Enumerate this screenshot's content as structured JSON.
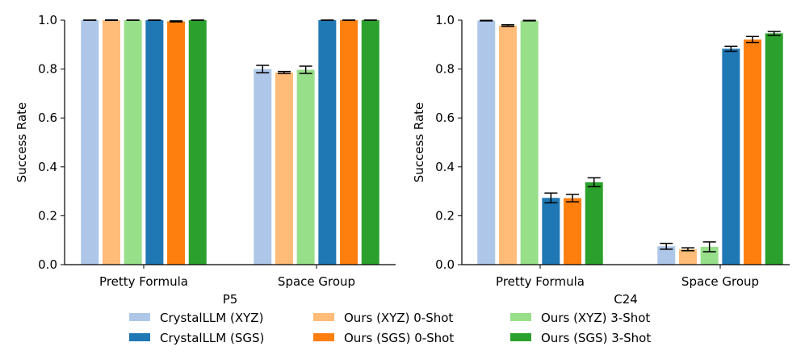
{
  "chart_data": [
    {
      "type": "bar",
      "title": "",
      "xlabel": "P5",
      "ylabel": "Success Rate",
      "ylim": [
        0,
        1.0
      ],
      "yticks": [
        "0.0",
        "0.2",
        "0.4",
        "0.6",
        "0.8",
        "1.0"
      ],
      "categories": [
        "Pretty Formula",
        "Space Group"
      ],
      "series": [
        {
          "name": "CrystalLLM (XYZ)",
          "values": [
            1.0,
            0.8
          ],
          "errors": [
            0.0,
            0.015
          ]
        },
        {
          "name": "Ours (XYZ) 0-Shot",
          "values": [
            1.0,
            0.786
          ],
          "errors": [
            0.001,
            0.004
          ]
        },
        {
          "name": "Ours (XYZ) 3-Shot",
          "values": [
            1.0,
            0.797
          ],
          "errors": [
            0.0,
            0.015
          ]
        },
        {
          "name": "CrystalLLM (SGS)",
          "values": [
            1.0,
            1.0
          ],
          "errors": [
            0.0,
            0.0
          ]
        },
        {
          "name": "Ours (SGS) 0-Shot",
          "values": [
            0.995,
            1.0
          ],
          "errors": [
            0.002,
            0.0
          ]
        },
        {
          "name": "Ours (SGS) 3-Shot",
          "values": [
            1.0,
            1.0
          ],
          "errors": [
            0.0,
            0.0
          ]
        }
      ]
    },
    {
      "type": "bar",
      "title": "",
      "xlabel": "C24",
      "ylabel": "Success Rate",
      "ylim": [
        0,
        1.0
      ],
      "yticks": [
        "0.0",
        "0.2",
        "0.4",
        "0.6",
        "0.8",
        "1.0"
      ],
      "categories": [
        "Pretty Formula",
        "Space Group"
      ],
      "series": [
        {
          "name": "CrystalLLM (XYZ)",
          "values": [
            0.998,
            0.075
          ],
          "errors": [
            0.001,
            0.012
          ]
        },
        {
          "name": "Ours (XYZ) 0-Shot",
          "values": [
            0.978,
            0.063
          ],
          "errors": [
            0.003,
            0.006
          ]
        },
        {
          "name": "Ours (XYZ) 3-Shot",
          "values": [
            0.998,
            0.073
          ],
          "errors": [
            0.001,
            0.02
          ]
        },
        {
          "name": "CrystalLLM (SGS)",
          "values": [
            0.273,
            0.883
          ],
          "errors": [
            0.02,
            0.01
          ]
        },
        {
          "name": "Ours (SGS) 0-Shot",
          "values": [
            0.272,
            0.921
          ],
          "errors": [
            0.015,
            0.012
          ]
        },
        {
          "name": "Ours (SGS) 3-Shot",
          "values": [
            0.337,
            0.946
          ],
          "errors": [
            0.018,
            0.008
          ]
        }
      ]
    }
  ],
  "legend": {
    "placement": "bottom-center",
    "columns": 3,
    "items": [
      {
        "label": "CrystalLLM (XYZ)",
        "color": "#aec7e8"
      },
      {
        "label": "CrystalLLM (SGS)",
        "color": "#1f77b4"
      },
      {
        "label": "Ours (XYZ) 0-Shot",
        "color": "#ffbb78"
      },
      {
        "label": "Ours (SGS) 0-Shot",
        "color": "#ff7f0e"
      },
      {
        "label": "Ours (XYZ) 3-Shot",
        "color": "#98df8a"
      },
      {
        "label": "Ours (SGS) 3-Shot",
        "color": "#2ca02c"
      }
    ]
  },
  "series_colors": [
    "#aec7e8",
    "#ffbb78",
    "#98df8a",
    "#1f77b4",
    "#ff7f0e",
    "#2ca02c"
  ]
}
